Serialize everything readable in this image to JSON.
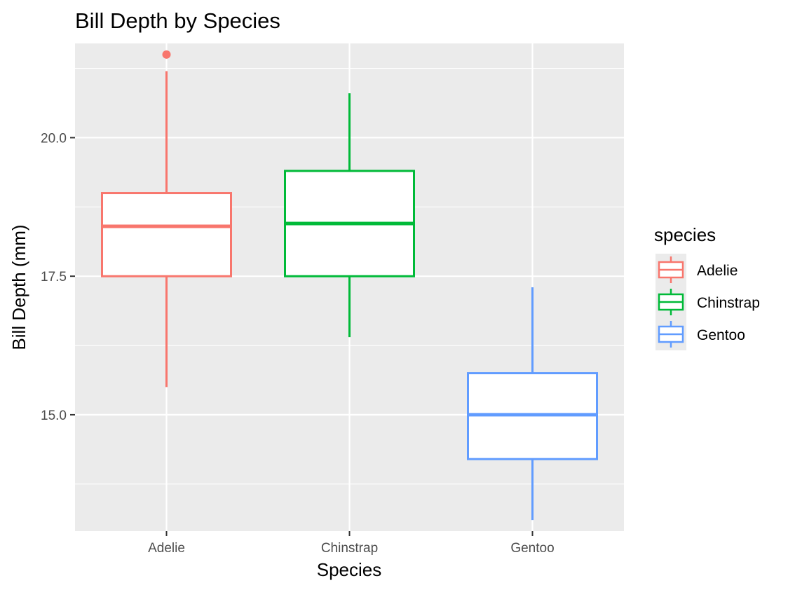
{
  "chart_data": {
    "type": "box",
    "title": "Bill Depth by Species",
    "xlabel": "Species",
    "ylabel": "Bill Depth (mm)",
    "categories": [
      "Adelie",
      "Chinstrap",
      "Gentoo"
    ],
    "ylim": [
      12.9,
      21.7
    ],
    "yticks": [
      15.0,
      17.5,
      20.0
    ],
    "ytick_labels": [
      "15.0",
      "17.5",
      "20.0"
    ],
    "grid": true,
    "legend": {
      "title": "species",
      "position": "right",
      "entries": [
        "Adelie",
        "Chinstrap",
        "Gentoo"
      ]
    },
    "series": [
      {
        "name": "Adelie",
        "color": "#F8766D",
        "min": 15.5,
        "q1": 17.5,
        "median": 18.4,
        "q3": 19.0,
        "max": 21.2,
        "outliers": [
          21.5
        ]
      },
      {
        "name": "Chinstrap",
        "color": "#00BA38",
        "min": 16.4,
        "q1": 17.5,
        "median": 18.45,
        "q3": 19.4,
        "max": 20.8,
        "outliers": []
      },
      {
        "name": "Gentoo",
        "color": "#619CFF",
        "min": 13.1,
        "q1": 14.2,
        "median": 15.0,
        "q3": 15.75,
        "max": 17.3,
        "outliers": []
      }
    ]
  }
}
